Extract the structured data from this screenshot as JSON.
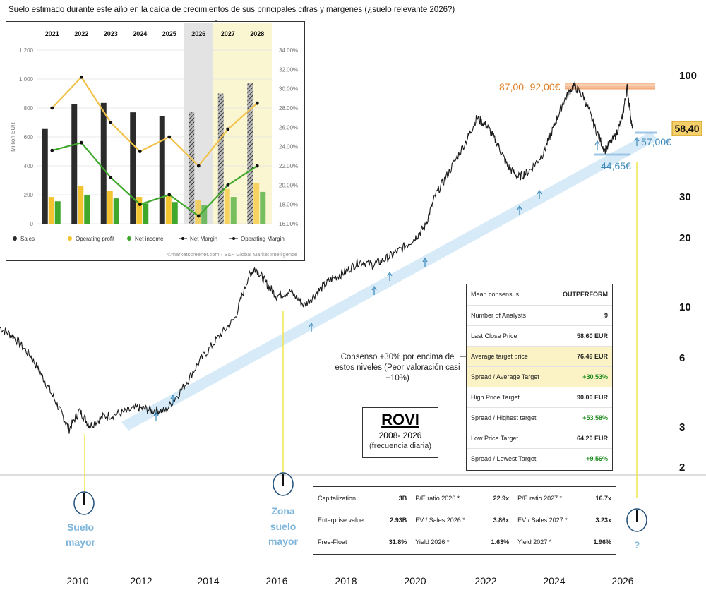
{
  "header_note": "Suelo estimado durante este año en la caída de crecimientos de sus principales cifras y márgenes (¿suelo relevante 2026?)",
  "colors": {
    "price": "#1a1a1a",
    "trend_channel": "#cfe6f7",
    "resistance_zone": "#f7c9a8",
    "support_line": "#9ec4e6",
    "annotation_orange": "#e07b1f",
    "annotation_blue": "#3a87b8",
    "year_marker_yellow": "#f2e64b",
    "sales_bar": "#2b2b2b",
    "operating_profit_bar": "#f4c430",
    "net_income_bar": "#3fa82c",
    "net_margin_line": "#3fa82c",
    "operating_margin_line": "#f1c24a",
    "forecast_bg": "#fbf6d2",
    "current_year_bg": "#e3e3e3"
  },
  "chart_data": [
    {
      "type": "line",
      "title": "ROVI",
      "subtitle": "2008- 2026",
      "note": "(frecuencia diaria)",
      "y_scale": "log",
      "x_ticks": [
        "2010",
        "2012",
        "2014",
        "2016",
        "2018",
        "2020",
        "2022",
        "2024",
        "2026"
      ],
      "y_ticks": [
        "2",
        "3",
        "6",
        "10",
        "20",
        "30",
        "100"
      ],
      "ylim": [
        2,
        130
      ],
      "series": [
        {
          "x": [
            2008.0,
            2008.4,
            2008.9,
            2009.3,
            2009.7,
            2010.0,
            2010.3,
            2010.6,
            2011.0,
            2011.5,
            2012.0,
            2012.4,
            2012.8,
            2013.3,
            2013.8,
            2014.3,
            2014.8,
            2015.2,
            2015.4,
            2015.7,
            2016.0,
            2016.4,
            2016.8,
            2017.2,
            2017.6,
            2018.0,
            2018.4,
            2018.8,
            2019.2,
            2019.6,
            2020.0,
            2020.3,
            2020.6,
            2021.0,
            2021.5,
            2021.8,
            2022.1,
            2022.4,
            2022.7,
            2023.0,
            2023.3,
            2023.7,
            2024.0,
            2024.3,
            2024.6,
            2024.9,
            2025.2,
            2025.5,
            2025.8,
            2026.0,
            2026.15,
            2026.3
          ],
          "values": [
            8.0,
            7.3,
            6.0,
            4.7,
            3.6,
            2.9,
            3.5,
            3.0,
            3.3,
            3.4,
            3.6,
            3.5,
            3.5,
            4.4,
            5.8,
            7.2,
            8.8,
            13.5,
            14.5,
            12.5,
            11.0,
            11.5,
            10.0,
            11.5,
            13.0,
            14.0,
            15.5,
            15.0,
            16.0,
            17.5,
            19.5,
            22.0,
            30.0,
            38.0,
            52.0,
            65.0,
            60.0,
            50.0,
            40.0,
            36.0,
            38.0,
            45.0,
            58.0,
            76.0,
            90.0,
            80.0,
            60.0,
            47.0,
            54.0,
            64.0,
            88.0,
            58.4
          ]
        }
      ],
      "annotations": {
        "resistance": "87,00- 92,00€",
        "last_price_badge": "58,40",
        "support_high": "57,00€",
        "support_low": "44,65€",
        "floor_major": "Suelo mayor",
        "floor_zone": "Zona suelo mayor",
        "unknown": "?",
        "consensus_note": "Consenso +30% por encima de estos niveles (Peor valoración casi +10%)"
      }
    },
    {
      "type": "bar",
      "categories": [
        "2021",
        "2022",
        "2023",
        "2024",
        "2025",
        "2026",
        "2027",
        "2028"
      ],
      "ylabel": "Million EUR",
      "ylim": [
        0,
        1200
      ],
      "y_ticks": [
        "0",
        "200",
        "400",
        "600",
        "800",
        "1,000",
        "1,200"
      ],
      "y2_ticks": [
        "16.00%",
        "18.00%",
        "20.00%",
        "22.00%",
        "24.00%",
        "26.00%",
        "28.00%",
        "30.00%",
        "32.00%",
        "34.00%"
      ],
      "y2lim": [
        16,
        34
      ],
      "forecast_from": "2026",
      "series": [
        {
          "name": "Sales",
          "values": [
            655,
            825,
            835,
            770,
            745,
            770,
            900,
            970
          ]
        },
        {
          "name": "Operating profit",
          "values": [
            185,
            260,
            225,
            185,
            190,
            165,
            240,
            280
          ]
        },
        {
          "name": "Net income",
          "values": [
            155,
            200,
            175,
            140,
            150,
            130,
            185,
            220
          ]
        },
        {
          "name": "Net Margin",
          "values": [
            23.6,
            24.4,
            20.8,
            18.0,
            19.0,
            16.8,
            20.0,
            22.0
          ]
        },
        {
          "name": "Operating Margin",
          "values": [
            28.0,
            31.2,
            26.5,
            23.5,
            25.0,
            22.0,
            25.8,
            28.5
          ]
        }
      ],
      "source": "©marketscreener.com - S&P Global Market Intelligence"
    }
  ],
  "consensus_table": [
    {
      "label": "Mean consensus",
      "value": "OUTPERFORM"
    },
    {
      "label": "Number of Analysts",
      "value": "9"
    },
    {
      "label": "Last Close Price",
      "value": "58.60 EUR"
    },
    {
      "label": "Average target price",
      "value": "76.49 EUR"
    },
    {
      "label": "Spread / Average Target",
      "value": "+30.53%"
    },
    {
      "label": "High Price Target",
      "value": "90.00 EUR"
    },
    {
      "label": "Spread / Highest target",
      "value": "+53.58%"
    },
    {
      "label": "Low Price Target",
      "value": "64.20 EUR"
    },
    {
      "label": "Spread / Lowest Target",
      "value": "+9.56%"
    }
  ],
  "valuation_table": [
    [
      "Capitalization",
      "3B",
      "P/E ratio 2026 *",
      "22.9x",
      "P/E ratio 2027 *",
      "16.7x"
    ],
    [
      "Enterprise value",
      "2.93B",
      "EV / Sales 2026 *",
      "3.86x",
      "EV / Sales 2027 *",
      "3.23x"
    ],
    [
      "Free-Float",
      "31.8%",
      "Yield 2026 *",
      "1.63%",
      "Yield 2027 *",
      "1.96%"
    ]
  ]
}
